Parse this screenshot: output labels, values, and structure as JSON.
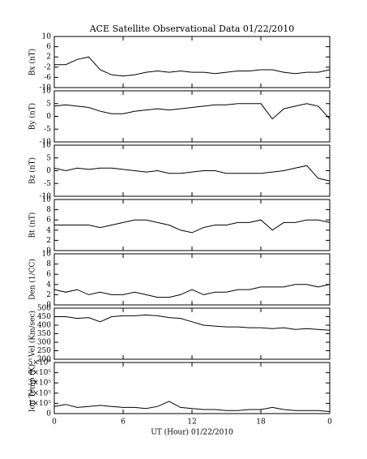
{
  "chart_data": [
    {
      "type": "line",
      "title": "ACE Satellite Observational Data   01/22/2010",
      "ylabel": "Bx (nT)",
      "color": "#000000",
      "x": [
        0,
        1,
        2,
        3,
        4,
        5,
        6,
        7,
        8,
        9,
        10,
        11,
        12,
        13,
        14,
        15,
        16,
        17,
        18,
        19,
        20,
        21,
        22,
        23,
        24
      ],
      "values": [
        -1,
        -1,
        1,
        2,
        -3,
        -5,
        -5.5,
        -5,
        -4,
        -3.5,
        -4,
        -3.5,
        -4,
        -4,
        -4.5,
        -4,
        -3.5,
        -3.5,
        -3,
        -3,
        -4,
        -4.5,
        -4,
        -4,
        -3
      ],
      "xlim": [
        0,
        24
      ],
      "xticks": [
        0,
        6,
        12,
        18,
        24
      ],
      "ylim": [
        -10,
        10
      ],
      "yticks": [
        -10,
        -6,
        -2,
        2,
        6,
        10
      ]
    },
    {
      "type": "line",
      "ylabel": "By (nT)",
      "color": "#000000",
      "x": [
        0,
        1,
        2,
        3,
        4,
        5,
        6,
        7,
        8,
        9,
        10,
        11,
        12,
        13,
        14,
        15,
        16,
        17,
        18,
        19,
        20,
        21,
        22,
        23,
        24
      ],
      "values": [
        4,
        4.5,
        4,
        3.5,
        2,
        1,
        1,
        2,
        2.5,
        3,
        2.5,
        3,
        3.5,
        4,
        4.5,
        4.5,
        5,
        5,
        5,
        -1,
        3,
        4,
        5,
        4,
        -1
      ],
      "xlim": [
        0,
        24
      ],
      "xticks": [
        0,
        6,
        12,
        18,
        24
      ],
      "ylim": [
        -10,
        10
      ],
      "yticks": [
        -10,
        -5,
        0,
        5,
        10
      ]
    },
    {
      "type": "line",
      "ylabel": "Bz (nT)",
      "color": "#000000",
      "x": [
        0,
        1,
        2,
        3,
        4,
        5,
        6,
        7,
        8,
        9,
        10,
        11,
        12,
        13,
        14,
        15,
        16,
        17,
        18,
        19,
        20,
        21,
        22,
        23,
        24
      ],
      "values": [
        1,
        0,
        1,
        0.5,
        1,
        1,
        0.5,
        0,
        -0.5,
        0,
        -1,
        -1,
        -0.5,
        0,
        0,
        -1,
        -1,
        -1,
        -1,
        -0.5,
        0,
        1,
        2,
        -3,
        -4
      ],
      "xlim": [
        0,
        24
      ],
      "xticks": [
        0,
        6,
        12,
        18,
        24
      ],
      "ylim": [
        -10,
        10
      ],
      "yticks": [
        -10,
        -5,
        0,
        5,
        10
      ]
    },
    {
      "type": "line",
      "ylabel": "Bt (nT)",
      "color": "#000000",
      "x": [
        0,
        1,
        2,
        3,
        4,
        5,
        6,
        7,
        8,
        9,
        10,
        11,
        12,
        13,
        14,
        15,
        16,
        17,
        18,
        19,
        20,
        21,
        22,
        23,
        24
      ],
      "values": [
        5,
        5,
        5,
        5,
        4.5,
        5,
        5.5,
        6,
        6,
        5.5,
        5,
        4,
        3.5,
        4.5,
        5,
        5,
        5.5,
        5.5,
        6,
        4,
        5.5,
        5.5,
        6,
        6,
        5.5
      ],
      "xlim": [
        0,
        24
      ],
      "xticks": [
        0,
        6,
        12,
        18,
        24
      ],
      "ylim": [
        0,
        10
      ],
      "yticks": [
        0,
        2,
        4,
        6,
        8,
        10
      ]
    },
    {
      "type": "line",
      "ylabel": "Den (1/CC)",
      "color": "#000000",
      "x": [
        0,
        1,
        2,
        3,
        4,
        5,
        6,
        7,
        8,
        9,
        10,
        11,
        12,
        13,
        14,
        15,
        16,
        17,
        18,
        19,
        20,
        21,
        22,
        23,
        24
      ],
      "values": [
        3,
        2.5,
        3,
        2,
        2.5,
        2,
        2,
        2.5,
        2,
        1.5,
        1.5,
        2,
        3,
        2,
        2.5,
        2.5,
        3,
        3,
        3.5,
        3.5,
        3.5,
        4,
        4,
        3.5,
        4
      ],
      "xlim": [
        0,
        24
      ],
      "xticks": [
        0,
        6,
        12,
        18,
        24
      ],
      "ylim": [
        0,
        10
      ],
      "yticks": [
        0,
        2,
        4,
        6,
        8,
        10
      ]
    },
    {
      "type": "line",
      "ylabel": "Vel (Km/sec)",
      "color": "#000000",
      "x": [
        0,
        1,
        2,
        3,
        4,
        5,
        6,
        7,
        8,
        9,
        10,
        11,
        12,
        13,
        14,
        15,
        16,
        17,
        18,
        19,
        20,
        21,
        22,
        23,
        24
      ],
      "values": [
        450,
        450,
        440,
        445,
        420,
        450,
        455,
        455,
        460,
        455,
        445,
        440,
        420,
        400,
        395,
        390,
        390,
        385,
        385,
        380,
        385,
        375,
        380,
        375,
        370
      ],
      "xlim": [
        0,
        24
      ],
      "xticks": [
        0,
        6,
        12,
        18,
        24
      ],
      "ylim": [
        200,
        500
      ],
      "yticks": [
        200,
        250,
        300,
        350,
        400,
        450,
        500
      ]
    },
    {
      "type": "line",
      "ylabel": "Ion Temp (K)",
      "xlabel": "UT (Hour)   01/22/2010",
      "color": "#000000",
      "x": [
        0,
        1,
        2,
        3,
        4,
        5,
        6,
        7,
        8,
        9,
        10,
        11,
        12,
        13,
        14,
        15,
        16,
        17,
        18,
        19,
        20,
        21,
        22,
        23,
        24
      ],
      "values": [
        70000,
        90000,
        60000,
        70000,
        80000,
        70000,
        60000,
        60000,
        50000,
        70000,
        120000,
        60000,
        50000,
        40000,
        40000,
        30000,
        30000,
        40000,
        40000,
        60000,
        40000,
        30000,
        30000,
        30000,
        20000
      ],
      "xlim": [
        0,
        24
      ],
      "xticks": [
        0,
        6,
        12,
        18,
        {
          "value": 24,
          "label": "0"
        }
      ],
      "ylim": [
        0,
        500000
      ],
      "yticks": [
        0,
        {
          "value": 100000,
          "label": "1×10⁵"
        },
        {
          "value": 200000,
          "label": "2×10⁵"
        },
        {
          "value": 300000,
          "label": "3×10⁵"
        },
        {
          "value": 400000,
          "label": "4×10⁵"
        },
        {
          "value": 500000,
          "label": "5×10⁵"
        }
      ]
    }
  ]
}
